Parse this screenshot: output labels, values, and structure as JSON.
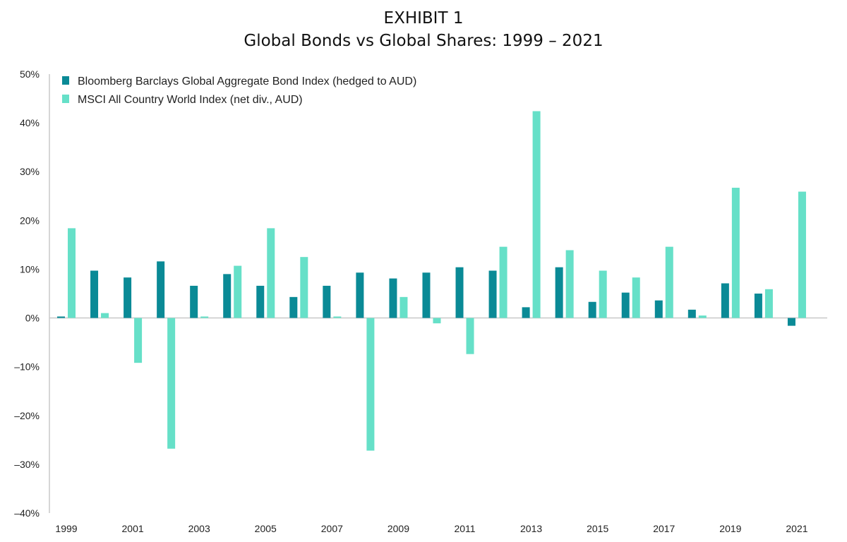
{
  "header": {
    "title": "EXHIBIT 1",
    "subtitle": "Global Bonds vs Global Shares: 1999 – 2021"
  },
  "chart_data": {
    "type": "bar",
    "title": "EXHIBIT 1",
    "subtitle": "Global Bonds vs Global Shares: 1999 – 2021",
    "xlabel": "",
    "ylabel": "",
    "ylim": [
      -40,
      50
    ],
    "yticks": [
      50,
      40,
      30,
      20,
      10,
      0,
      -10,
      -20,
      -30,
      -40
    ],
    "ytick_labels": [
      "50%",
      "40%",
      "30%",
      "20%",
      "10%",
      "0%",
      "–10%",
      "–20%",
      "–30%",
      "–40%"
    ],
    "categories": [
      "1999",
      "2000",
      "2001",
      "2002",
      "2003",
      "2004",
      "2005",
      "2006",
      "2007",
      "2008",
      "2009",
      "2010",
      "2011",
      "2012",
      "2013",
      "2014",
      "2015",
      "2016",
      "2017",
      "2018",
      "2019",
      "2020",
      "2021"
    ],
    "xtick_labels": [
      "1999",
      "",
      "2001",
      "",
      "2003",
      "",
      "2005",
      "",
      "2007",
      "",
      "2009",
      "",
      "2011",
      "",
      "2013",
      "",
      "2015",
      "",
      "2017",
      "",
      "2019",
      "",
      "2021"
    ],
    "grid": false,
    "legend_position": "top-left",
    "series": [
      {
        "name": "Bloomberg Barclays Global Aggregate Bond Index (hedged to AUD)",
        "color": "#0a8a96",
        "values": [
          0.3,
          9.7,
          8.3,
          11.6,
          6.6,
          9.0,
          6.6,
          4.3,
          6.6,
          9.3,
          8.1,
          9.3,
          10.4,
          9.7,
          2.2,
          10.4,
          3.3,
          5.2,
          3.6,
          1.7,
          7.1,
          5.0,
          -1.6
        ]
      },
      {
        "name": "MSCI All Country World Index (net div., AUD)",
        "color": "#66e0c8",
        "values": [
          18.4,
          1.0,
          -9.2,
          -26.8,
          0.3,
          10.7,
          18.4,
          12.5,
          0.3,
          -27.2,
          4.3,
          -1.1,
          -7.4,
          14.6,
          42.4,
          13.9,
          9.7,
          8.3,
          14.6,
          0.5,
          26.7,
          5.9,
          25.9
        ]
      }
    ]
  }
}
